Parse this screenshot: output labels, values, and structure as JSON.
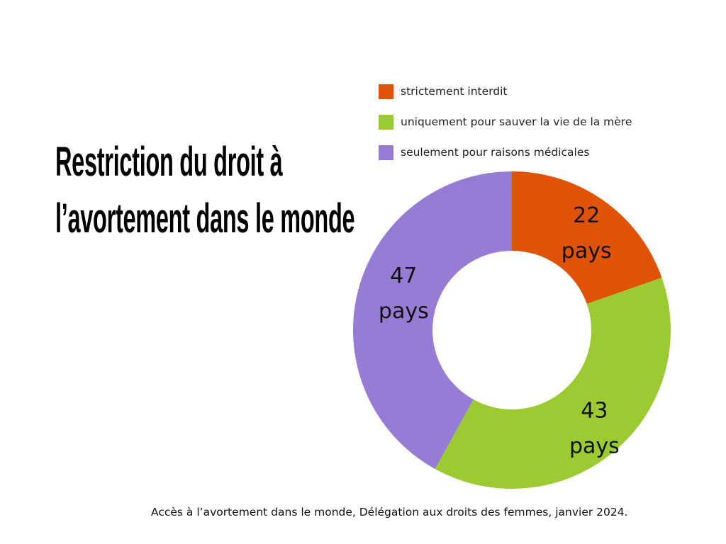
{
  "chart_data": {
    "type": "pie",
    "variant": "donut",
    "title_lines": [
      "Restriction du droit à",
      "l’avortement dans le monde"
    ],
    "categories": [
      "strictement interdit",
      "uniquement pour sauver la vie de la mère",
      "seulement pour raisons médicales"
    ],
    "values": [
      22,
      43,
      47
    ],
    "unit_label": "pays",
    "colors": [
      "#E05206",
      "#9BCB31",
      "#977BD5"
    ],
    "legend_position": "top-right",
    "caption": "Accès à l’avortement dans le monde, Délégation aux droits des femmes, janvier 2024."
  }
}
